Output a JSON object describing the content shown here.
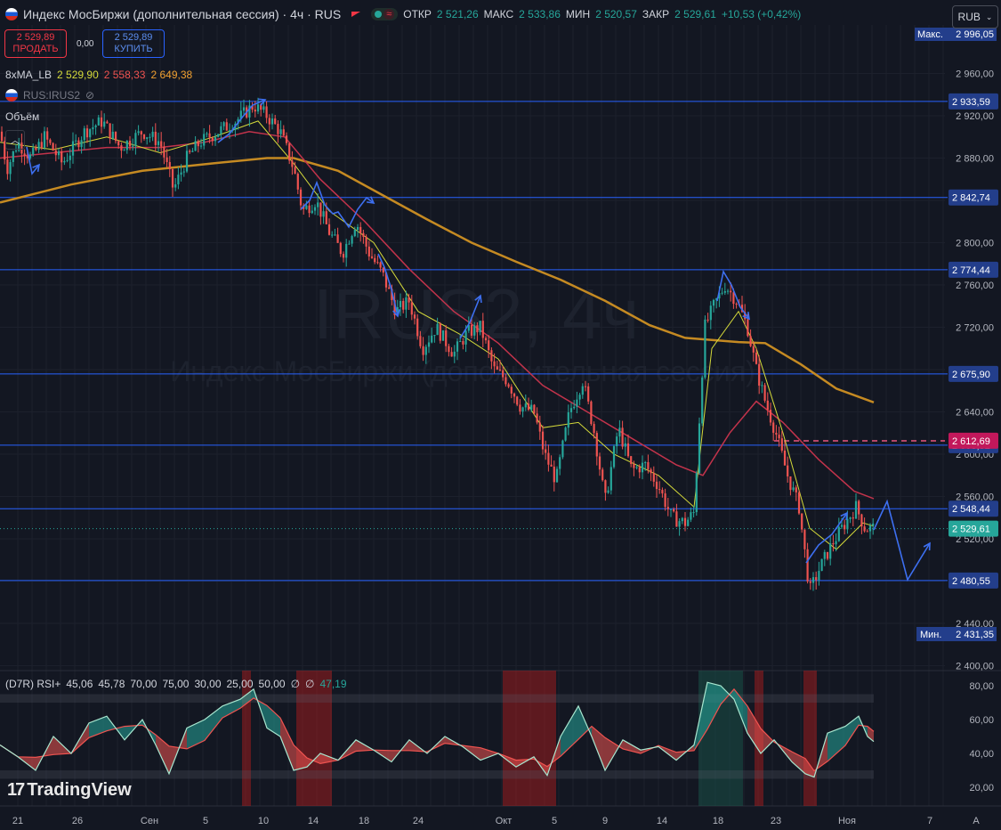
{
  "header": {
    "title": "Индекс МосБиржи (дополнительная сессия) · 4ч · RUS",
    "ohlc": [
      {
        "label": "ОТКР",
        "value": "2 521,26"
      },
      {
        "label": "МАКС",
        "value": "2 533,86"
      },
      {
        "label": "МИН",
        "value": "2 520,57"
      },
      {
        "label": "ЗАКР",
        "value": "2 529,61"
      }
    ],
    "change": "+10,53 (+0,42%)",
    "currency": "RUB"
  },
  "trade": {
    "sell_price": "2 529,89",
    "sell_label": "ПРОДАТЬ",
    "spread": "0,00",
    "buy_price": "2 529,89",
    "buy_label": "КУПИТЬ"
  },
  "indicators": {
    "ma_name": "8xMA_LB",
    "ma_values": [
      "2 529,90",
      "2 558,33",
      "2 649,38"
    ],
    "compare_symbol": "RUS:IRUS2",
    "volume_label": "Объём"
  },
  "watermark": {
    "symbol": "IRUS2, 4ч",
    "name": "Индекс МосБиржи (дополнительная сессия)"
  },
  "rsi": {
    "label": "(D7R) RSI+",
    "params": [
      "45,06",
      "45,78",
      "70,00",
      "75,00",
      "30,00",
      "25,00",
      "50,00",
      "∅",
      "∅"
    ],
    "value": "47,19"
  },
  "brand": "TradingView",
  "colors": {
    "background": "#131722",
    "up": "#26a69a",
    "down": "#ef5350",
    "level": "#2962ff",
    "ma_fast": "#d4d93a",
    "ma_mid": "#c2334b",
    "ma_slow": "#c58a22",
    "arrows": "#3d6ff0"
  },
  "chart_data": [
    {
      "type": "candlestick",
      "title": "Индекс МосБиржи (дополнительная сессия) · 4ч · RUS",
      "x_ticks": [
        "21",
        "26",
        "Сен",
        "5",
        "10",
        "14",
        "18",
        "24",
        "Окт",
        "5",
        "9",
        "14",
        "18",
        "23",
        "Ноя",
        "7",
        "A"
      ],
      "y_ticks": [
        "2 400,00",
        "2 440,00",
        "2 480,00",
        "2 520,00",
        "2 560,00",
        "2 600,00",
        "2 640,00",
        "2 680,00",
        "2 720,00",
        "2 760,00",
        "2 800,00",
        "2 840,00",
        "2 880,00",
        "2 920,00",
        "2 960,00"
      ],
      "ylim": [
        2400,
        2996
      ],
      "y_range_labels": {
        "max_label": "Макс.",
        "max": "2 996,05",
        "min_label": "Мин.",
        "min": "2 431,35"
      },
      "horizontal_levels": [
        "2 933,59",
        "2 842,74",
        "2 774,44",
        "2 675,90",
        "2 608,52",
        "2 548,44",
        "2 480,55"
      ],
      "level_values": [
        2933.59,
        2842.74,
        2774.44,
        2675.9,
        2608.52,
        2548.44,
        2480.55
      ],
      "current_price": {
        "label": "2 529,61",
        "value": 2529.61
      },
      "ma_marker": {
        "label": "2 612,69",
        "value": 2612.69
      },
      "close_path": [
        [
          0,
          2905
        ],
        [
          8,
          2870
        ],
        [
          20,
          2895
        ],
        [
          35,
          2880
        ],
        [
          50,
          2900
        ],
        [
          70,
          2875
        ],
        [
          95,
          2905
        ],
        [
          115,
          2915
        ],
        [
          135,
          2890
        ],
        [
          160,
          2905
        ],
        [
          180,
          2895
        ],
        [
          195,
          2850
        ],
        [
          210,
          2880
        ],
        [
          225,
          2895
        ],
        [
          245,
          2905
        ],
        [
          265,
          2915
        ],
        [
          285,
          2930
        ],
        [
          300,
          2920
        ],
        [
          315,
          2905
        ],
        [
          330,
          2870
        ],
        [
          340,
          2830
        ],
        [
          355,
          2840
        ],
        [
          370,
          2810
        ],
        [
          385,
          2790
        ],
        [
          400,
          2820
        ],
        [
          415,
          2790
        ],
        [
          430,
          2770
        ],
        [
          445,
          2735
        ],
        [
          460,
          2745
        ],
        [
          475,
          2700
        ],
        [
          490,
          2720
        ],
        [
          510,
          2695
        ],
        [
          525,
          2715
        ],
        [
          540,
          2720
        ],
        [
          555,
          2680
        ],
        [
          570,
          2670
        ],
        [
          585,
          2645
        ],
        [
          600,
          2640
        ],
        [
          612,
          2600
        ],
        [
          625,
          2575
        ],
        [
          640,
          2640
        ],
        [
          655,
          2670
        ],
        [
          668,
          2620
        ],
        [
          680,
          2555
        ],
        [
          695,
          2625
        ],
        [
          710,
          2585
        ],
        [
          725,
          2590
        ],
        [
          740,
          2570
        ],
        [
          755,
          2540
        ],
        [
          770,
          2535
        ],
        [
          780,
          2545
        ],
        [
          792,
          2720
        ],
        [
          802,
          2740
        ],
        [
          815,
          2760
        ],
        [
          828,
          2745
        ],
        [
          840,
          2720
        ],
        [
          850,
          2680
        ],
        [
          860,
          2650
        ],
        [
          872,
          2620
        ],
        [
          885,
          2580
        ],
        [
          898,
          2550
        ],
        [
          910,
          2470
        ],
        [
          920,
          2490
        ],
        [
          935,
          2515
        ],
        [
          950,
          2535
        ],
        [
          962,
          2550
        ],
        [
          972,
          2530
        ],
        [
          982,
          2530
        ]
      ],
      "ma_fast_path": [
        [
          0,
          2895
        ],
        [
          60,
          2888
        ],
        [
          120,
          2900
        ],
        [
          180,
          2885
        ],
        [
          240,
          2900
        ],
        [
          290,
          2915
        ],
        [
          330,
          2875
        ],
        [
          370,
          2830
        ],
        [
          420,
          2800
        ],
        [
          470,
          2735
        ],
        [
          520,
          2712
        ],
        [
          560,
          2690
        ],
        [
          610,
          2625
        ],
        [
          650,
          2630
        ],
        [
          690,
          2600
        ],
        [
          740,
          2580
        ],
        [
          780,
          2550
        ],
        [
          800,
          2700
        ],
        [
          830,
          2735
        ],
        [
          850,
          2700
        ],
        [
          880,
          2620
        ],
        [
          910,
          2530
        ],
        [
          940,
          2510
        ],
        [
          970,
          2535
        ],
        [
          982,
          2532
        ]
      ],
      "ma_mid_path": [
        [
          0,
          2880
        ],
        [
          60,
          2885
        ],
        [
          120,
          2890
        ],
        [
          180,
          2890
        ],
        [
          230,
          2895
        ],
        [
          280,
          2905
        ],
        [
          320,
          2900
        ],
        [
          360,
          2860
        ],
        [
          410,
          2820
        ],
        [
          460,
          2775
        ],
        [
          510,
          2735
        ],
        [
          560,
          2705
        ],
        [
          610,
          2665
        ],
        [
          660,
          2640
        ],
        [
          710,
          2615
        ],
        [
          760,
          2590
        ],
        [
          790,
          2580
        ],
        [
          820,
          2620
        ],
        [
          850,
          2650
        ],
        [
          880,
          2630
        ],
        [
          920,
          2595
        ],
        [
          960,
          2565
        ],
        [
          982,
          2558
        ]
      ],
      "ma_slow_path": [
        [
          0,
          2838
        ],
        [
          80,
          2855
        ],
        [
          160,
          2868
        ],
        [
          240,
          2875
        ],
        [
          300,
          2880
        ],
        [
          330,
          2880
        ],
        [
          380,
          2868
        ],
        [
          430,
          2845
        ],
        [
          480,
          2822
        ],
        [
          530,
          2800
        ],
        [
          580,
          2782
        ],
        [
          630,
          2765
        ],
        [
          680,
          2745
        ],
        [
          730,
          2722
        ],
        [
          770,
          2710
        ],
        [
          800,
          2708
        ],
        [
          830,
          2706
        ],
        [
          860,
          2705
        ],
        [
          900,
          2685
        ],
        [
          940,
          2662
        ],
        [
          982,
          2649
        ]
      ],
      "forecast_path": [
        [
          982,
          2530
        ],
        [
          997,
          2560
        ],
        [
          1020,
          2482
        ],
        [
          1045,
          2512
        ]
      ]
    },
    {
      "type": "area",
      "title": "(D7R) RSI+",
      "y_ticks": [
        "20,00",
        "40,00",
        "60,00",
        "80,00"
      ],
      "ylim": [
        10,
        90
      ],
      "rsi_path": [
        [
          0,
          45
        ],
        [
          20,
          38
        ],
        [
          40,
          30
        ],
        [
          60,
          50
        ],
        [
          80,
          40
        ],
        [
          100,
          58
        ],
        [
          120,
          62
        ],
        [
          140,
          48
        ],
        [
          160,
          60
        ],
        [
          175,
          45
        ],
        [
          190,
          28
        ],
        [
          210,
          55
        ],
        [
          230,
          60
        ],
        [
          250,
          68
        ],
        [
          270,
          72
        ],
        [
          285,
          78
        ],
        [
          300,
          55
        ],
        [
          315,
          50
        ],
        [
          330,
          30
        ],
        [
          345,
          32
        ],
        [
          360,
          40
        ],
        [
          380,
          36
        ],
        [
          400,
          48
        ],
        [
          420,
          42
        ],
        [
          440,
          35
        ],
        [
          460,
          48
        ],
        [
          480,
          40
        ],
        [
          500,
          50
        ],
        [
          520,
          44
        ],
        [
          540,
          36
        ],
        [
          560,
          40
        ],
        [
          580,
          32
        ],
        [
          600,
          38
        ],
        [
          615,
          27
        ],
        [
          630,
          50
        ],
        [
          650,
          68
        ],
        [
          665,
          50
        ],
        [
          680,
          30
        ],
        [
          700,
          48
        ],
        [
          720,
          42
        ],
        [
          740,
          44
        ],
        [
          760,
          36
        ],
        [
          780,
          45
        ],
        [
          795,
          82
        ],
        [
          810,
          80
        ],
        [
          825,
          72
        ],
        [
          840,
          52
        ],
        [
          855,
          40
        ],
        [
          870,
          48
        ],
        [
          890,
          35
        ],
        [
          905,
          28
        ],
        [
          915,
          26
        ],
        [
          930,
          52
        ],
        [
          950,
          56
        ],
        [
          965,
          62
        ],
        [
          975,
          50
        ],
        [
          982,
          47
        ]
      ]
    }
  ]
}
